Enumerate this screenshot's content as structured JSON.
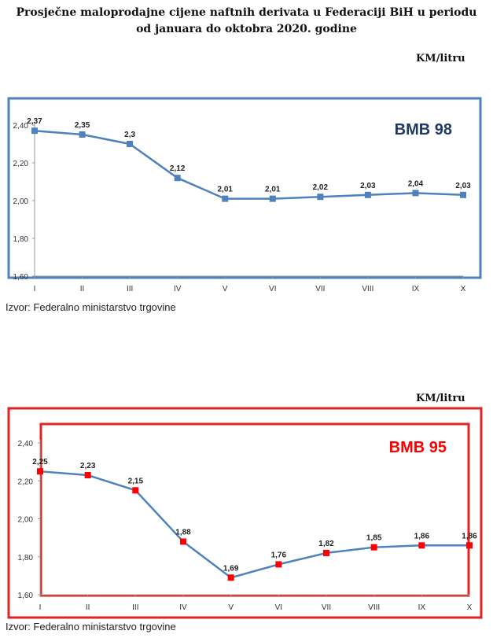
{
  "header": {
    "title_line1": "Prosječne maloprodajne cijene naftnih derivata u Federaciji BiH u periodu",
    "title_line2": "od januara do oktobra 2020. godine"
  },
  "charts": [
    {
      "unit": "KM/litru",
      "source": "Izvor: Federalno ministarstvo trgovine"
    },
    {
      "unit": "KM/litru",
      "source": "Izvor: Federalno ministarstvo trgovine"
    }
  ],
  "chart_data": [
    {
      "type": "line",
      "title": "BMB 98",
      "categories": [
        "I",
        "II",
        "III",
        "IV",
        "V",
        "VI",
        "VII",
        "VIII",
        "IX",
        "X"
      ],
      "series": [
        {
          "values": [
            2.37,
            2.35,
            2.3,
            2.12,
            2.01,
            2.01,
            2.02,
            2.03,
            2.04,
            2.03
          ]
        }
      ],
      "data_labels": [
        "2,37",
        "2,35",
        "2,3",
        "2,12",
        "2,01",
        "2,01",
        "2,02",
        "2,03",
        "2,04",
        "2,03"
      ],
      "yticks": [
        "1,60",
        "1,80",
        "2,00",
        "2,20",
        "2,40"
      ],
      "ylim": [
        1.6,
        2.4
      ],
      "grid": false,
      "colors": {
        "line": "#4f81bd",
        "marker": "#4f81bd",
        "frame": "#4f81bd",
        "title": "#1f3864"
      }
    },
    {
      "type": "line",
      "title": "BMB 95",
      "categories": [
        "I",
        "II",
        "III",
        "IV",
        "V",
        "VI",
        "VII",
        "VIII",
        "IX",
        "X"
      ],
      "series": [
        {
          "values": [
            2.25,
            2.23,
            2.15,
            1.88,
            1.69,
            1.76,
            1.82,
            1.85,
            1.86,
            1.86
          ]
        }
      ],
      "data_labels": [
        "2,25",
        "2,23",
        "2,15",
        "1,88",
        "1,69",
        "1,76",
        "1,82",
        "1,85",
        "1,86",
        "1,86"
      ],
      "yticks": [
        "1,60",
        "1,80",
        "2,00",
        "2,20",
        "2,40"
      ],
      "ylim": [
        1.6,
        2.4
      ],
      "grid": false,
      "colors": {
        "line": "#4f81bd",
        "marker": "#ff0000",
        "frame": "#e32222",
        "title": "#ff0000"
      }
    }
  ]
}
